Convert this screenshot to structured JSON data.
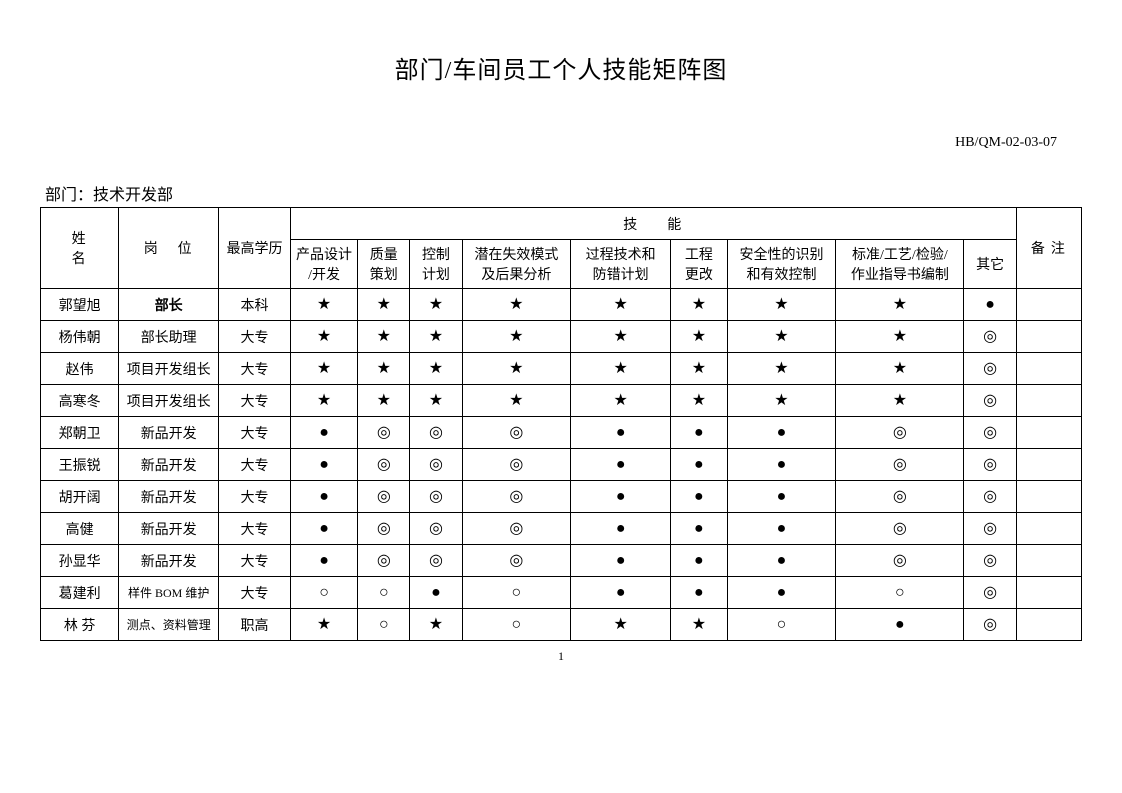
{
  "title": "部门/车间员工个人技能矩阵图",
  "doc_code": "HB/QM-02-03-07",
  "dept_label": "部门：技术开发部",
  "page_number": "1",
  "headers": {
    "name": "姓名",
    "position": "岗位",
    "education": "最高学历",
    "skills_group": "技能",
    "skill1_l1": "产品设计",
    "skill1_l2": "/开发",
    "skill2_l1": "质量",
    "skill2_l2": "策划",
    "skill3_l1": "控制",
    "skill3_l2": "计划",
    "skill4_l1": "潜在失效模式",
    "skill4_l2": "及后果分析",
    "skill5_l1": "过程技术和",
    "skill5_l2": "防错计划",
    "skill6_l1": "工程",
    "skill6_l2": "更改",
    "skill7_l1": "安全性的识别",
    "skill7_l2": "和有效控制",
    "skill8_l1": "标准/工艺/检验/",
    "skill8_l2": "作业指导书编制",
    "other": "其它",
    "remark": "备注"
  },
  "symbols": {
    "star": "★",
    "solid": "●",
    "double": "◎",
    "hollow": "○"
  },
  "rows": [
    {
      "name": "郭望旭",
      "position": "部长",
      "pos_bold": true,
      "education": "本科",
      "skills": [
        "star",
        "star",
        "star",
        "star",
        "star",
        "star",
        "star",
        "star"
      ],
      "other": "solid",
      "remark": ""
    },
    {
      "name": "杨伟朝",
      "position": "部长助理",
      "pos_bold": false,
      "education": "大专",
      "skills": [
        "star",
        "star",
        "star",
        "star",
        "star",
        "star",
        "star",
        "star"
      ],
      "other": "double",
      "remark": ""
    },
    {
      "name": "赵伟",
      "position": "项目开发组长",
      "pos_bold": false,
      "education": "大专",
      "skills": [
        "star",
        "star",
        "star",
        "star",
        "star",
        "star",
        "star",
        "star"
      ],
      "other": "double",
      "remark": ""
    },
    {
      "name": "高寒冬",
      "position": "项目开发组长",
      "pos_bold": false,
      "education": "大专",
      "skills": [
        "star",
        "star",
        "star",
        "star",
        "star",
        "star",
        "star",
        "star"
      ],
      "other": "double",
      "remark": ""
    },
    {
      "name": "郑朝卫",
      "position": "新品开发",
      "pos_bold": false,
      "education": "大专",
      "skills": [
        "solid",
        "double",
        "double",
        "double",
        "solid",
        "solid",
        "solid",
        "double"
      ],
      "other": "double",
      "remark": ""
    },
    {
      "name": "王振锐",
      "position": "新品开发",
      "pos_bold": false,
      "education": "大专",
      "skills": [
        "solid",
        "double",
        "double",
        "double",
        "solid",
        "solid",
        "solid",
        "double"
      ],
      "other": "double",
      "remark": ""
    },
    {
      "name": "胡开阔",
      "position": "新品开发",
      "pos_bold": false,
      "education": "大专",
      "skills": [
        "solid",
        "double",
        "double",
        "double",
        "solid",
        "solid",
        "solid",
        "double"
      ],
      "other": "double",
      "remark": ""
    },
    {
      "name": "高健",
      "position": "新品开发",
      "pos_bold": false,
      "education": "大专",
      "skills": [
        "solid",
        "double",
        "double",
        "double",
        "solid",
        "solid",
        "solid",
        "double"
      ],
      "other": "double",
      "remark": ""
    },
    {
      "name": "孙显华",
      "position": "新品开发",
      "pos_bold": false,
      "education": "大专",
      "skills": [
        "solid",
        "double",
        "double",
        "double",
        "solid",
        "solid",
        "solid",
        "double"
      ],
      "other": "double",
      "remark": ""
    },
    {
      "name": "葛建利",
      "position": "样件 BOM 维护",
      "pos_bold": false,
      "pos_small": true,
      "education": "大专",
      "skills": [
        "hollow",
        "hollow",
        "solid",
        "hollow",
        "solid",
        "solid",
        "solid",
        "hollow"
      ],
      "other": "double",
      "remark": ""
    },
    {
      "name": "林 芬",
      "position": "测点、资料管理",
      "pos_bold": false,
      "pos_small": true,
      "education": "职高",
      "skills": [
        "star",
        "hollow",
        "star",
        "hollow",
        "star",
        "star",
        "hollow",
        "solid"
      ],
      "other": "double",
      "remark": ""
    }
  ]
}
